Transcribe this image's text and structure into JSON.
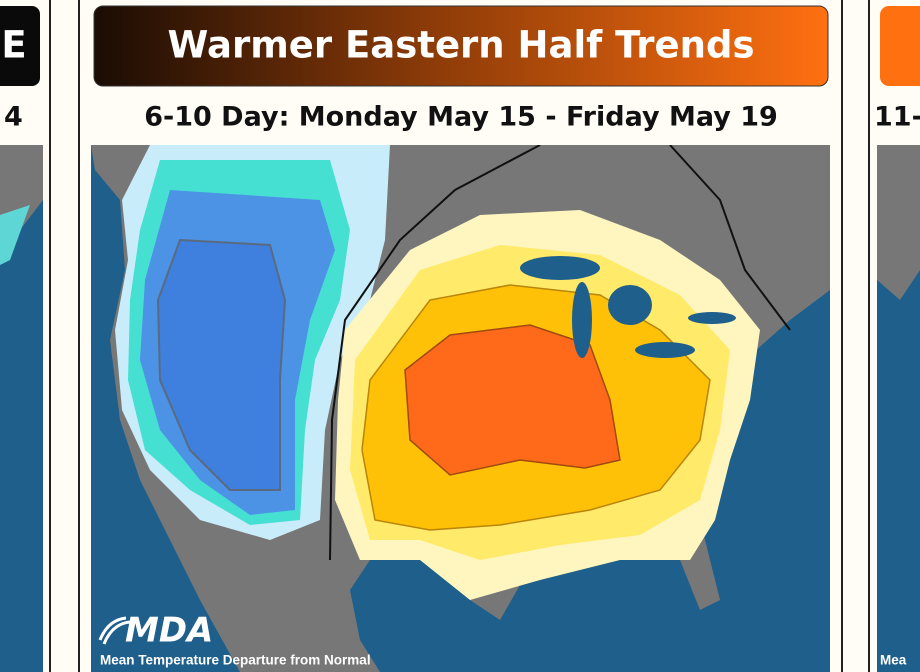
{
  "left_panel": {
    "header": "E",
    "subtitle": "4"
  },
  "center_panel": {
    "header": "Warmer Eastern Half Trends",
    "subtitle": "6-10 Day: Monday May 15 - Friday May 19",
    "logo": "MDA",
    "caption": "Mean Temperature Departure from Normal"
  },
  "right_panel": {
    "subtitle": "11-",
    "caption": "Mea"
  }
}
